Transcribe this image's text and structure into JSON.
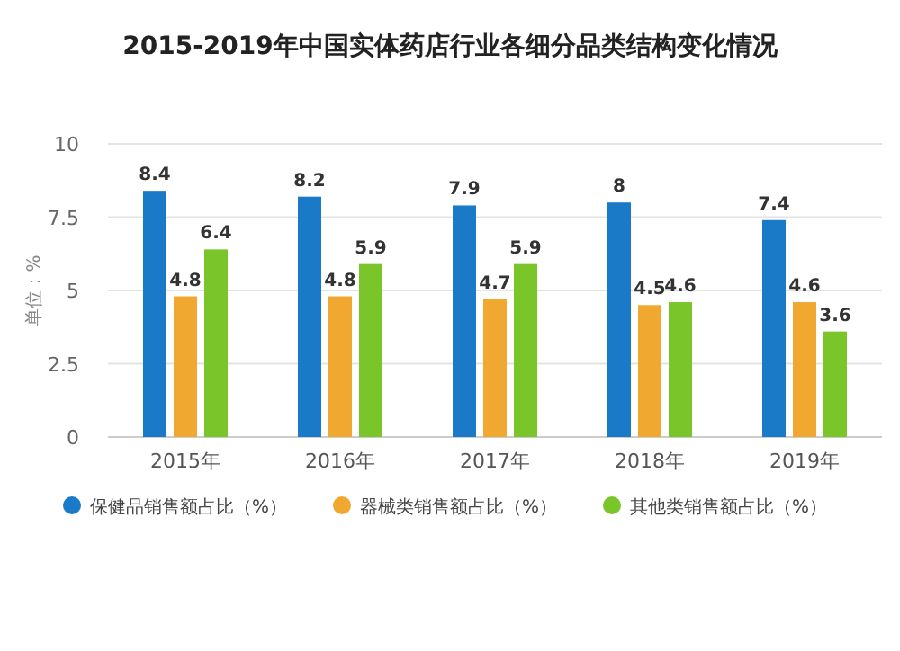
{
  "chart_data": {
    "type": "bar",
    "title": "2015-2019年中国实体药店行业各细分品类结构变化情况",
    "ylabel": "单位：%",
    "categories": [
      "2015年",
      "2016年",
      "2017年",
      "2018年",
      "2019年"
    ],
    "series": [
      {
        "name": "保健品销售额占比（%）",
        "color": "#1a7ac8",
        "values": [
          8.4,
          8.2,
          7.9,
          8,
          7.4
        ]
      },
      {
        "name": "器械类销售额占比（%）",
        "color": "#f0a830",
        "values": [
          4.8,
          4.8,
          4.7,
          4.5,
          4.6
        ]
      },
      {
        "name": "其他类销售额占比（%）",
        "color": "#7ac52a",
        "values": [
          6.4,
          5.9,
          5.9,
          4.6,
          3.6
        ]
      }
    ],
    "ylim": [
      0,
      10
    ],
    "yticks": [
      0,
      2.5,
      5,
      7.5,
      10
    ],
    "grid": "y",
    "legend": "bottom",
    "data_labels": true
  }
}
